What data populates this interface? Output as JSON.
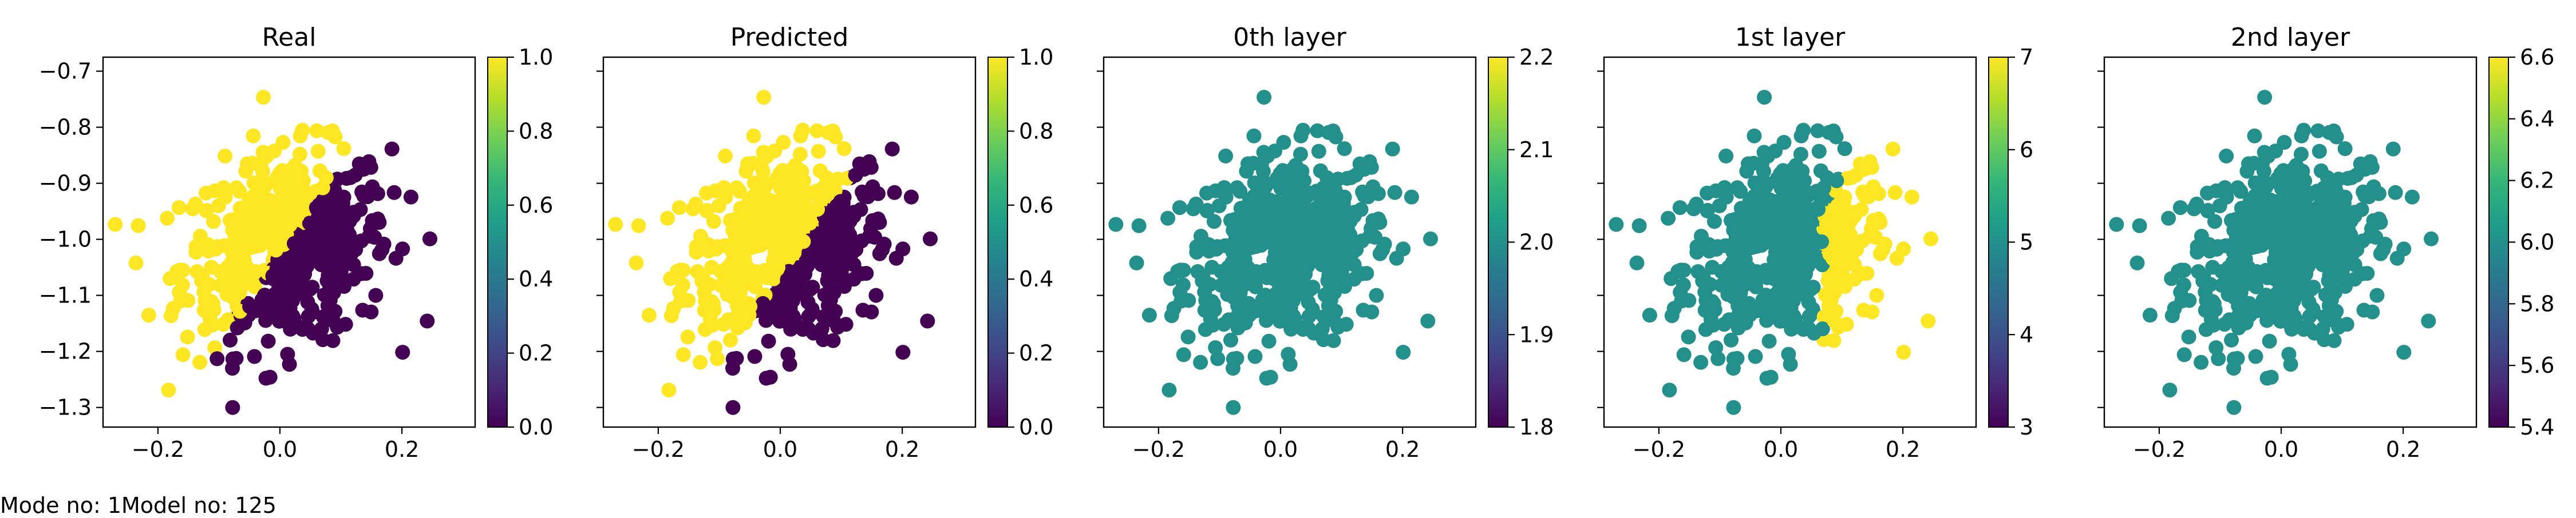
{
  "footer": {
    "mode_text": "Mode no: 1",
    "model_text": "Model no: 125"
  },
  "colormap": [
    "#440154",
    "#482878",
    "#3e4a89",
    "#31688e",
    "#26828e",
    "#1f9e89",
    "#35b779",
    "#6ece58",
    "#b5de2b",
    "#fde725"
  ],
  "chart_data": [
    {
      "type": "scatter",
      "title": "Real",
      "xlim": [
        -0.29,
        0.32
      ],
      "ylim": [
        -1.335,
        -0.675
      ],
      "xticks": [
        -0.2,
        0.0,
        0.2
      ],
      "xticklabels": [
        "−0.2",
        "0.0",
        "0.2"
      ],
      "yticks": [
        -1.3,
        -1.2,
        -1.1,
        -1.0,
        -0.9,
        -0.8,
        -0.7
      ],
      "yticklabels": [
        "−1.3",
        "−1.2",
        "−1.1",
        "−1.0",
        "−0.9",
        "−0.8",
        "−0.7"
      ],
      "colorbar": {
        "range": [
          0.0,
          1.0
        ],
        "ticks": [
          0.0,
          0.2,
          0.4,
          0.6,
          0.8,
          1.0
        ],
        "ticklabels": [
          "0.0",
          "0.2",
          "0.4",
          "0.6",
          "0.8",
          "1.0"
        ]
      },
      "color_rule": "real",
      "point_count": 520
    },
    {
      "type": "scatter",
      "title": "Predicted",
      "xlim": [
        -0.29,
        0.32
      ],
      "ylim": [
        -1.335,
        -0.675
      ],
      "xticks": [
        -0.2,
        0.0,
        0.2
      ],
      "xticklabels": [
        "−0.2",
        "0.0",
        "0.2"
      ],
      "yticks": [],
      "yticklabels": [],
      "colorbar": {
        "range": [
          0.0,
          1.0
        ],
        "ticks": [
          0.0,
          0.2,
          0.4,
          0.6,
          0.8,
          1.0
        ],
        "ticklabels": [
          "0.0",
          "0.2",
          "0.4",
          "0.6",
          "0.8",
          "1.0"
        ]
      },
      "color_rule": "predicted",
      "point_count": 520
    },
    {
      "type": "scatter",
      "title": "0th layer",
      "xlim": [
        -0.29,
        0.32
      ],
      "ylim": [
        -1.335,
        -0.675
      ],
      "xticks": [
        -0.2,
        0.0,
        0.2
      ],
      "xticklabels": [
        "−0.2",
        "0.0",
        "0.2"
      ],
      "yticks": [],
      "yticklabels": [],
      "colorbar": {
        "range": [
          1.8,
          2.2
        ],
        "ticks": [
          1.8,
          1.9,
          2.0,
          2.1,
          2.2
        ],
        "ticklabels": [
          "1.8",
          "1.9",
          "2.0",
          "2.1",
          "2.2"
        ]
      },
      "color_rule": "constant_2",
      "point_count": 520
    },
    {
      "type": "scatter",
      "title": "1st layer",
      "xlim": [
        -0.29,
        0.32
      ],
      "ylim": [
        -1.335,
        -0.675
      ],
      "xticks": [
        -0.2,
        0.0,
        0.2
      ],
      "xticklabels": [
        "−0.2",
        "0.0",
        "0.2"
      ],
      "yticks": [],
      "yticklabels": [],
      "colorbar": {
        "range": [
          3,
          7
        ],
        "ticks": [
          3,
          4,
          5,
          6,
          7
        ],
        "ticklabels": [
          "3",
          "4",
          "5",
          "6",
          "7"
        ]
      },
      "color_rule": "layer1",
      "point_count": 520
    },
    {
      "type": "scatter",
      "title": "2nd layer",
      "xlim": [
        -0.29,
        0.32
      ],
      "ylim": [
        -1.335,
        -0.675
      ],
      "xticks": [
        -0.2,
        0.0,
        0.2
      ],
      "xticklabels": [
        "−0.2",
        "0.0",
        "0.2"
      ],
      "yticks": [],
      "yticklabels": [],
      "colorbar": {
        "range": [
          5.4,
          6.6
        ],
        "ticks": [
          5.4,
          5.6,
          5.8,
          6.0,
          6.2,
          6.4,
          6.6
        ],
        "ticklabels": [
          "5.4",
          "5.6",
          "5.8",
          "6.0",
          "6.2",
          "6.4",
          "6.6"
        ]
      },
      "color_rule": "constant_6",
      "point_count": 520
    }
  ]
}
